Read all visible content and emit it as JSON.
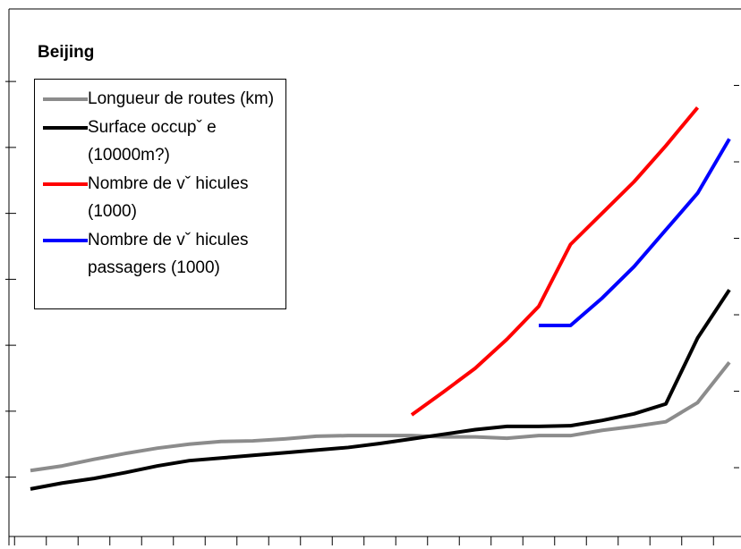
{
  "chart_data": {
    "type": "line",
    "title": "Beijing",
    "categories": [
      null,
      null,
      null,
      null,
      null,
      null,
      null,
      null,
      null,
      null,
      null,
      null,
      null,
      null,
      null,
      null,
      null,
      null,
      null,
      null,
      null,
      null,
      null
    ],
    "ylim": [
      0.1,
      8.1
    ],
    "yticks": [
      1,
      2,
      3,
      4,
      5,
      6,
      7
    ],
    "y2lim": [
      0.1,
      7.0
    ],
    "y2ticks": [
      1,
      2,
      3,
      4,
      5,
      6
    ],
    "series": [
      {
        "name": "Longueur de routes (km)",
        "color": "#8c8c8c",
        "values": [
          1.1,
          1.17,
          1.27,
          1.36,
          1.44,
          1.5,
          1.54,
          1.55,
          1.58,
          1.62,
          1.63,
          1.63,
          1.63,
          1.61,
          1.61,
          1.59,
          1.63,
          1.63,
          1.71,
          1.77,
          1.84,
          2.13,
          2.74
        ]
      },
      {
        "name": "Surface occupˇ e (10000m?)",
        "color": "#000000",
        "values": [
          0.82,
          0.91,
          0.98,
          1.07,
          1.17,
          1.25,
          1.29,
          1.33,
          1.37,
          1.41,
          1.45,
          1.51,
          1.58,
          1.65,
          1.72,
          1.77,
          1.77,
          1.78,
          1.86,
          1.96,
          2.11,
          3.11,
          3.84
        ]
      },
      {
        "name": "Nombre de vˇ hicules (1000)",
        "color": "#ff0000",
        "axis": "y2",
        "values": [
          null,
          null,
          null,
          null,
          null,
          null,
          null,
          null,
          null,
          null,
          null,
          null,
          1.69,
          1.99,
          2.3,
          2.68,
          3.11,
          3.92,
          4.33,
          4.74,
          5.21,
          5.71,
          null
        ]
      },
      {
        "name": "Nombre de vˇ hicules passagers (1000)",
        "color": "#0000ff",
        "axis": "y2",
        "values": [
          null,
          null,
          null,
          null,
          null,
          null,
          null,
          null,
          null,
          null,
          null,
          null,
          null,
          null,
          null,
          null,
          2.86,
          2.86,
          3.22,
          3.63,
          4.11,
          4.59,
          5.3
        ]
      }
    ]
  }
}
